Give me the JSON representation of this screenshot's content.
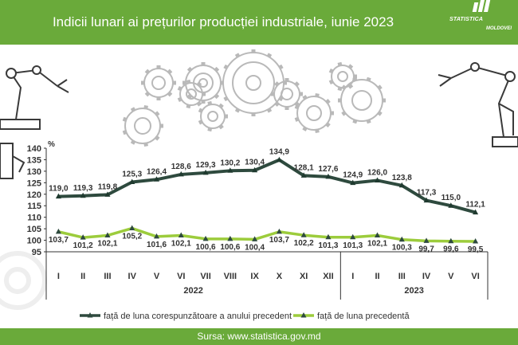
{
  "header": {
    "title": "Indicii lunari ai prețurilor producției industriale, iunie 2023"
  },
  "logo": {
    "line1": "STATISTICA",
    "line2": "MOLDOVEI"
  },
  "footer": {
    "source": "Sursa: www.statistica.gov.md"
  },
  "colors": {
    "header_green": "#6aaa3a",
    "series1": "#2e4a3e",
    "series2": "#9ccc3c",
    "logo_bars": "#ffffff"
  },
  "chart_data": {
    "type": "line",
    "ylabel": "%",
    "ylim": [
      95,
      140
    ],
    "yticks": [
      95,
      100,
      105,
      110,
      115,
      120,
      125,
      130,
      135,
      140
    ],
    "categories": [
      "I",
      "II",
      "III",
      "IV",
      "V",
      "VI",
      "VII",
      "VIII",
      "IX",
      "X",
      "XI",
      "XII",
      "I",
      "II",
      "III",
      "IV",
      "V",
      "VI"
    ],
    "years": [
      {
        "label": "2022",
        "months": 12
      },
      {
        "label": "2023",
        "months": 6
      }
    ],
    "series": [
      {
        "name": "față de luna corespunzătoare a anului precedent",
        "color": "#2e4a3e",
        "values": [
          119.0,
          119.3,
          119.8,
          125.3,
          126.4,
          128.6,
          129.3,
          130.2,
          130.4,
          134.9,
          128.1,
          127.6,
          124.9,
          126.0,
          123.8,
          117.3,
          115.0,
          112.1
        ],
        "labels": [
          "119,0",
          "119,3",
          "119,8",
          "125,3",
          "126,4",
          "128,6",
          "129,3",
          "130,2",
          "130,4",
          "134,9",
          "128,1",
          "127,6",
          "124,9",
          "126,0",
          "123,8",
          "117,3",
          "115,0",
          "112,1"
        ]
      },
      {
        "name": "față de luna precedentă",
        "color": "#9ccc3c",
        "values": [
          103.7,
          101.2,
          102.1,
          105.2,
          101.6,
          102.1,
          100.6,
          100.6,
          100.4,
          103.7,
          102.2,
          101.3,
          101.3,
          102.1,
          100.3,
          99.7,
          99.6,
          99.5
        ],
        "labels": [
          "103,7",
          "101,2",
          "102,1",
          "105,2",
          "101,6",
          "102,1",
          "100,6",
          "100,6",
          "100,4",
          "103,7",
          "102,2",
          "101,3",
          "101,3",
          "102,1",
          "100,3",
          "99,7",
          "99,6",
          "99,5"
        ]
      }
    ],
    "legend": "bottom"
  }
}
